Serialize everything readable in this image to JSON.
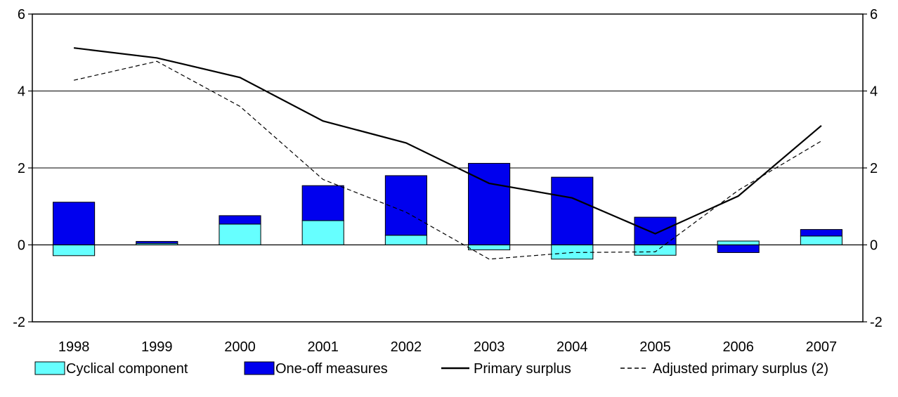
{
  "chart_data": {
    "type": "bar",
    "categories": [
      "1998",
      "1999",
      "2000",
      "2001",
      "2002",
      "2003",
      "2004",
      "2005",
      "2006",
      "2007"
    ],
    "series": [
      {
        "name": "Cyclical component",
        "kind": "bar",
        "stacked": true,
        "color": "#66ffff",
        "values": [
          -0.28,
          0.04,
          0.54,
          0.63,
          0.25,
          -0.13,
          -0.37,
          -0.27,
          0.1,
          0.23
        ]
      },
      {
        "name": "One-off measures",
        "kind": "bar",
        "stacked": true,
        "color": "#0000ee",
        "values": [
          1.11,
          0.05,
          0.22,
          0.91,
          1.55,
          2.12,
          1.76,
          0.72,
          -0.2,
          0.17
        ]
      },
      {
        "name": "Primary surplus",
        "kind": "line",
        "dash": "solid",
        "color": "#000000",
        "values": [
          5.12,
          4.86,
          4.35,
          3.22,
          2.65,
          1.6,
          1.22,
          0.29,
          1.27,
          3.1
        ]
      },
      {
        "name": "Adjusted primary surplus (2)",
        "kind": "line",
        "dash": "dashed",
        "color": "#000000",
        "values": [
          4.28,
          4.77,
          3.6,
          1.7,
          0.85,
          -0.37,
          -0.2,
          -0.18,
          1.42,
          2.7
        ]
      }
    ],
    "ylim": [
      -2,
      6
    ],
    "yticks": [
      -2,
      0,
      2,
      4,
      6
    ],
    "ytick_labels": [
      "-2",
      "0",
      "2",
      "4",
      "6"
    ],
    "secondary_ytick_labels": [
      "-2",
      "0",
      "2",
      "4",
      "6"
    ],
    "grid": true,
    "legend": "bottom",
    "title": "",
    "xlabel": "",
    "ylabel": ""
  }
}
